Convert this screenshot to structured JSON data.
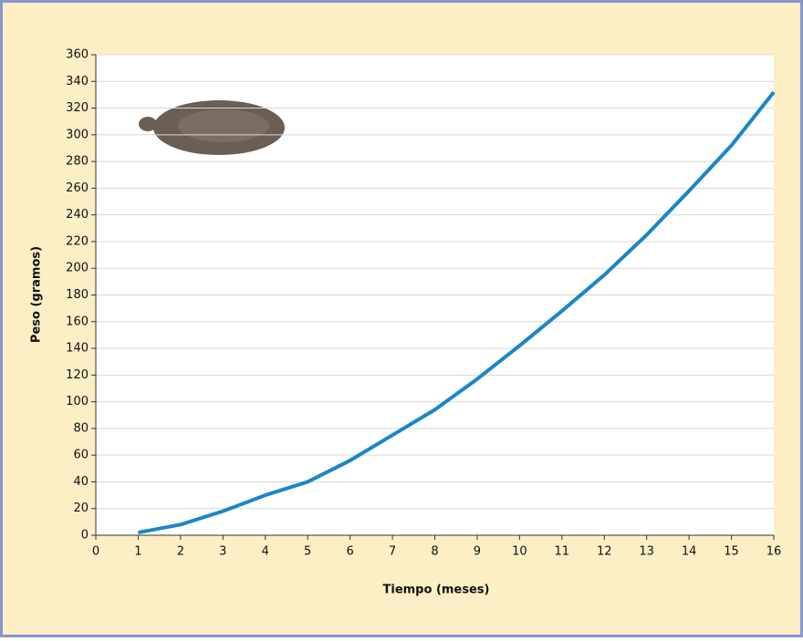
{
  "chart_data": {
    "type": "line",
    "x": [
      1,
      2,
      3,
      4,
      5,
      6,
      7,
      8,
      9,
      10,
      11,
      12,
      13,
      14,
      15,
      16
    ],
    "series": [
      {
        "name": "Peso",
        "color": "#1b86c8",
        "values": [
          2,
          8,
          18,
          30,
          40,
          56,
          75,
          94,
          117,
          142,
          168,
          195,
          225,
          258,
          292,
          332
        ]
      }
    ],
    "xlabel": "Tiempo (meses)",
    "ylabel": "Peso (gramos)",
    "xlim": [
      0,
      16
    ],
    "ylim": [
      0,
      360
    ],
    "xticks": [
      0,
      1,
      2,
      3,
      4,
      5,
      6,
      7,
      8,
      9,
      10,
      11,
      12,
      13,
      14,
      15,
      16
    ],
    "yticks": [
      0,
      20,
      40,
      60,
      80,
      100,
      120,
      140,
      160,
      180,
      200,
      220,
      240,
      260,
      280,
      300,
      320,
      340,
      360
    ],
    "grid": true
  }
}
